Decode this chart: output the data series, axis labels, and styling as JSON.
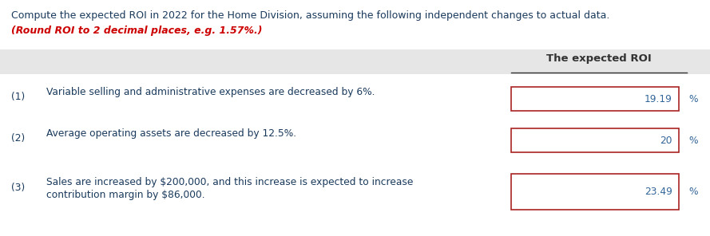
{
  "title_line1": "Compute the expected ROI in 2022 for the Home Division, assuming the following independent changes to actual data.",
  "title_line2": "(Round ROI to 2 decimal places, e.g. 1.57%.)",
  "header_label": "The expected ROI",
  "rows": [
    {
      "number": "(1)",
      "description": "Variable selling and administrative expenses are decreased by 6%.",
      "description2": "",
      "value": "19.19"
    },
    {
      "number": "(2)",
      "description": "Average operating assets are decreased by 12.5%.",
      "description2": "",
      "value": "20"
    },
    {
      "number": "(3)",
      "description": "Sales are increased by $200,000, and this increase is expected to increase",
      "description2": "contribution margin by $86,000.",
      "value": "23.49"
    }
  ],
  "bg_color": "#ffffff",
  "header_bg": "#e6e6e6",
  "body_text_color": "#1a3a5c",
  "red_italic_color": "#cc0000",
  "box_border_color": "#aa2222",
  "value_color": "#336699",
  "percent_color": "#336699",
  "header_text_color": "#333333",
  "font_size_title": 9.0,
  "font_size_body": 8.8,
  "font_size_header": 9.5,
  "font_size_value": 8.8
}
